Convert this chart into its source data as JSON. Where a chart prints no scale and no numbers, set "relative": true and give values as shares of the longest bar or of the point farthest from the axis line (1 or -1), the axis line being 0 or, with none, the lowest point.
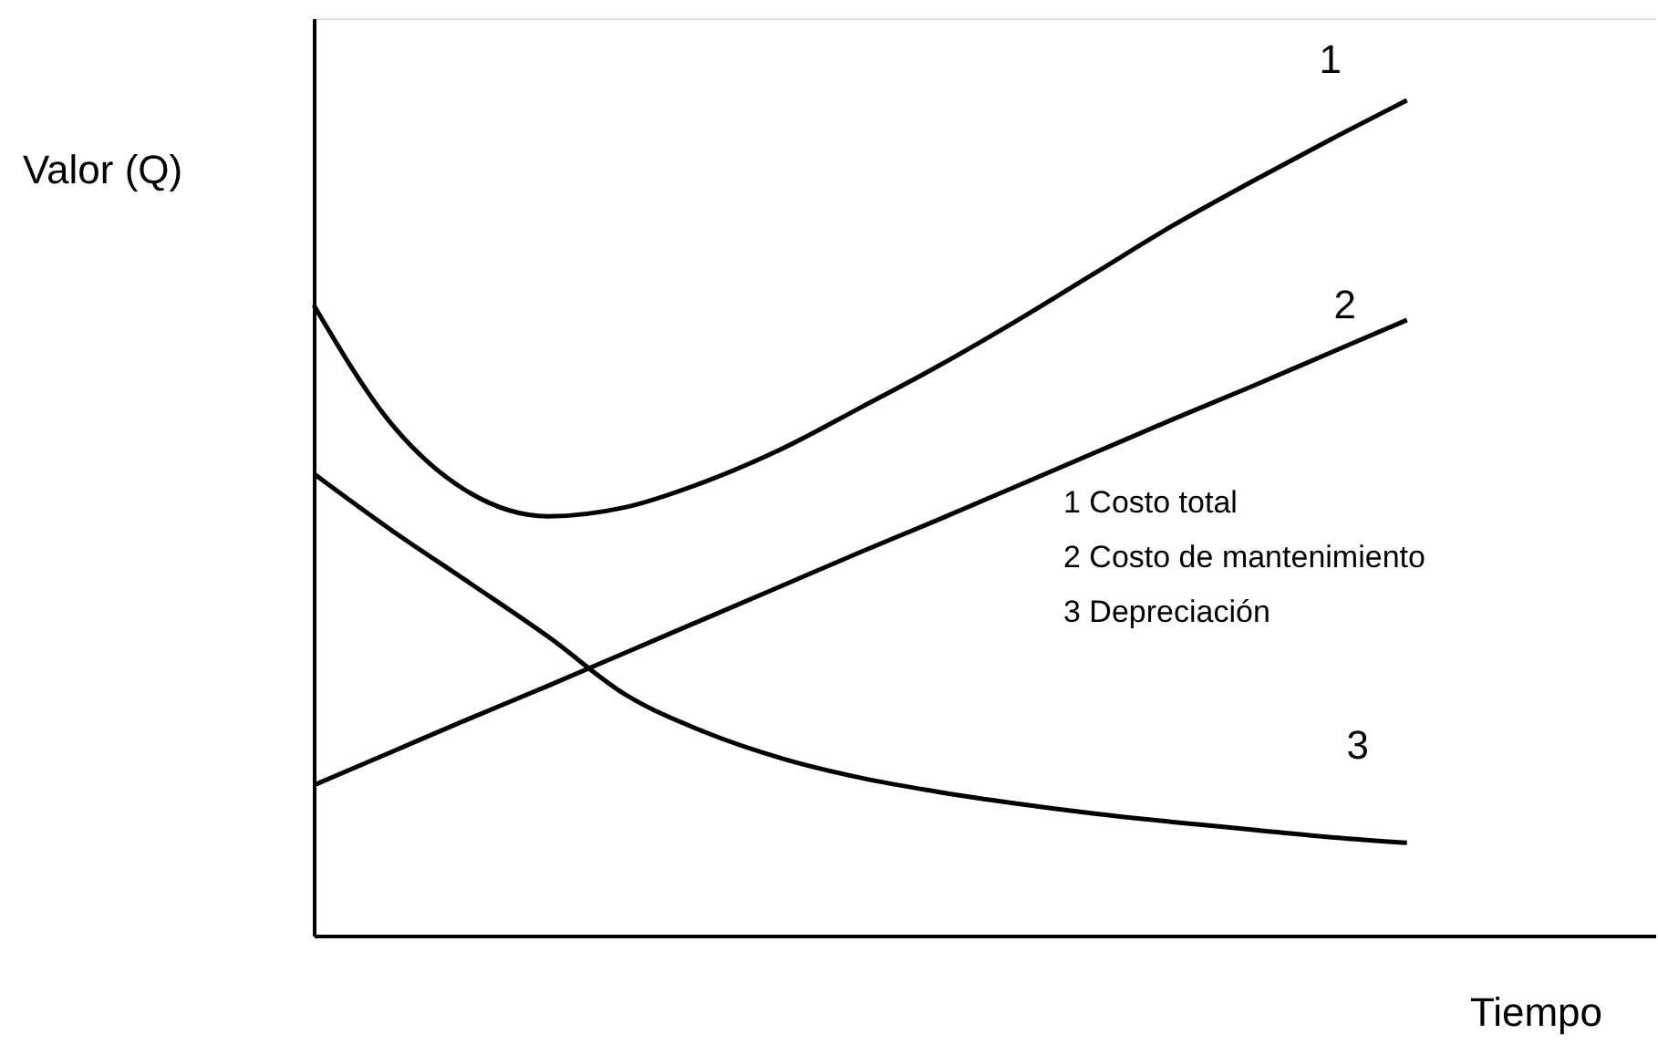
{
  "chart_data": {
    "type": "line",
    "relative": true,
    "xlabel": "Tiempo",
    "ylabel": "Valor  (Q)",
    "legend": false,
    "grid": false,
    "tick_labels": false,
    "marker": "none",
    "line_style": "solid",
    "categories": [
      null,
      null,
      null,
      null,
      null,
      null,
      null,
      null,
      null,
      null,
      null,
      null,
      null,
      null,
      null
    ],
    "series": [
      {
        "name": "1",
        "color": "#000000",
        "values": [
          0.755,
          0.612,
          0.53,
          0.502,
          0.513,
          0.543,
          0.583,
          0.632,
          0.682,
          0.736,
          0.793,
          0.85,
          0.902,
          0.952,
          1.0
        ]
      },
      {
        "name": "2",
        "color": "#000000",
        "values": [
          0.18,
          0.22,
          0.26,
          0.299,
          0.339,
          0.379,
          0.419,
          0.459,
          0.498,
          0.538,
          0.578,
          0.618,
          0.657,
          0.697,
          0.737
        ]
      },
      {
        "name": "3",
        "color": "#000000",
        "values": [
          0.553,
          0.485,
          0.422,
          0.358,
          0.288,
          0.244,
          0.212,
          0.189,
          0.172,
          0.158,
          0.146,
          0.136,
          0.127,
          0.118,
          0.111
        ]
      }
    ],
    "annotations": [
      "1  Costo total",
      " 2  Costo de mantenimiento",
      "3  Depreciación"
    ]
  }
}
